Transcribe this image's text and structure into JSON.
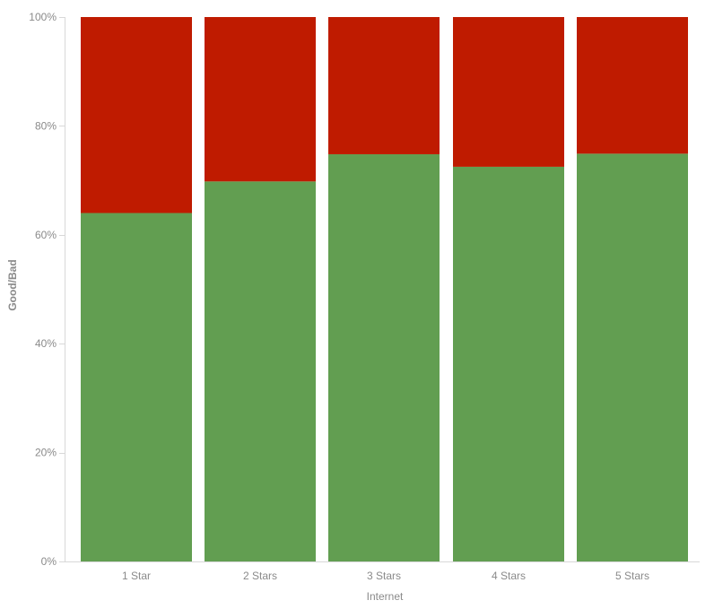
{
  "chart_data": {
    "type": "bar",
    "stacked": "percent",
    "categories": [
      "1 Star",
      "2 Stars",
      "3 Stars",
      "4 Stars",
      "5 Stars"
    ],
    "series": [
      {
        "key": "good",
        "values": [
          64,
          69.8,
          74.8,
          72.5,
          74.9
        ],
        "color": "#629e51"
      },
      {
        "key": "bad",
        "values": [
          36,
          30.2,
          25.2,
          27.5,
          25.1
        ],
        "color": "#bf1b00"
      }
    ],
    "xlabel": "Internet",
    "ylabel": "Good/Bad",
    "ylim": [
      0,
      100
    ],
    "yticks": [
      "0%",
      "20%",
      "40%",
      "60%",
      "80%",
      "100%"
    ],
    "ytick_values": [
      0,
      20,
      40,
      60,
      80,
      100
    ],
    "grid": false,
    "legend": "none"
  }
}
